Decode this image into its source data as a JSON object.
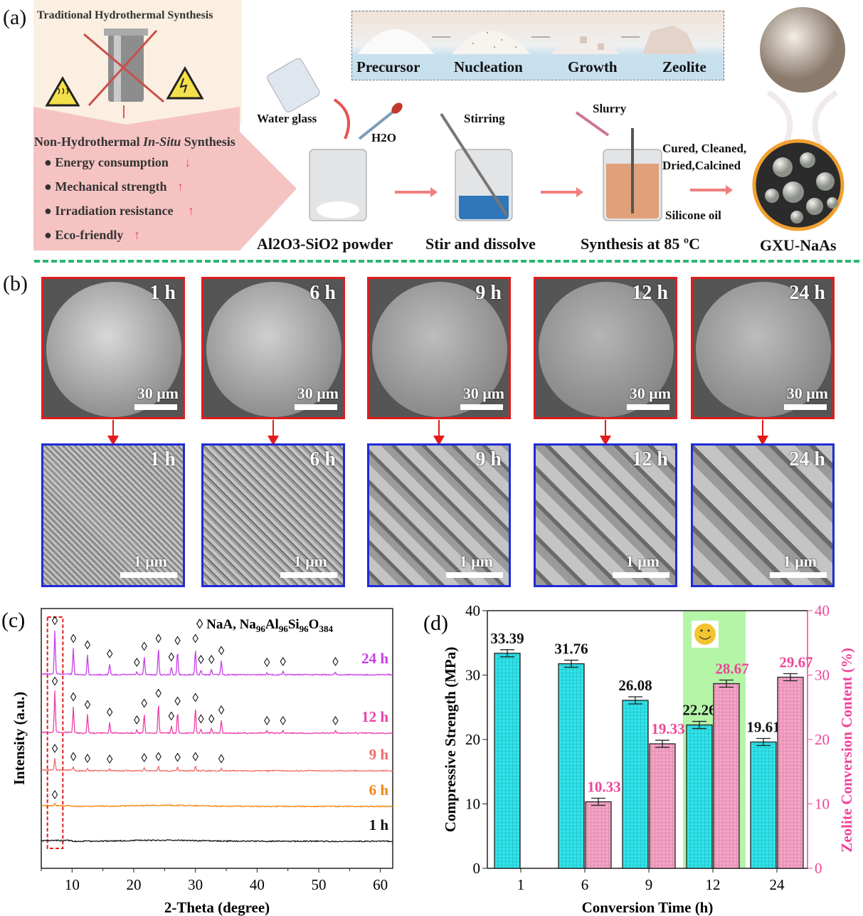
{
  "panel_a": {
    "label": "(a)",
    "traditional_title": "Traditional Hydrothermal Synthesis",
    "non_hydro_title_pre": "Non-Hydrothermal ",
    "non_hydro_title_em": "In-Situ",
    "non_hydro_title_post": " Synthesis",
    "benefits": [
      {
        "text": "Energy consumption",
        "arrow": "↓"
      },
      {
        "text": "Mechanical strength",
        "arrow": "↑"
      },
      {
        "text": "Irradiation resistance",
        "arrow": "↑"
      },
      {
        "text": "Eco-friendly",
        "arrow": "↑"
      }
    ],
    "stages": [
      "Precursor",
      "Nucleation",
      "Growth",
      "Zeolite"
    ],
    "water_glass": "Water glass",
    "h2o": "H2O",
    "stirring": "Stirring",
    "slurry": "Slurry",
    "cured": "Cured, Cleaned,",
    "dried": "Dried,Calcined",
    "silicone_oil": "Silicone oil",
    "steps": [
      "Al2O3-SiO2 powder",
      "Stir and dissolve",
      "Synthesis at 85 ºC",
      "GXU-NaAs"
    ],
    "colors": {
      "arrow": "#e8524f",
      "pink_panel": "#f6c3c3",
      "divider": "#2bb673"
    }
  },
  "panel_b": {
    "label": "(b)",
    "times": [
      "1 h",
      "6 h",
      "9 h",
      "12 h",
      "24 h"
    ],
    "scale_low": "30 μm",
    "scale_high": "1 μm",
    "colors": {
      "low_mag_border": "#e31b1b",
      "high_mag_border": "#1f2bd6"
    }
  },
  "chart_data": [
    {
      "panel": "(c)",
      "type": "line",
      "xlabel": "2-Theta (degree)",
      "ylabel": "Intensity (a.u.)",
      "xlim": [
        5,
        62
      ],
      "xticks": [
        10,
        20,
        30,
        40,
        50,
        60
      ],
      "legend": {
        "marker": "◊",
        "text": "NaA, Na",
        "formula": [
          [
            "96",
            "Al"
          ],
          [
            "96",
            "Si"
          ],
          [
            "96",
            "O"
          ],
          [
            "384",
            ""
          ]
        ]
      },
      "highlight_box_2theta": [
        6,
        8.5
      ],
      "series": [
        {
          "name": "24 h",
          "color": "#c93fe8",
          "peaks": [
            [
              7.2,
              1.0
            ],
            [
              10.2,
              0.6
            ],
            [
              12.5,
              0.45
            ],
            [
              16.1,
              0.25
            ],
            [
              20.5,
              0.06
            ],
            [
              21.7,
              0.42
            ],
            [
              24.0,
              0.6
            ],
            [
              26.1,
              0.18
            ],
            [
              27.1,
              0.55
            ],
            [
              30.0,
              0.6
            ],
            [
              30.9,
              0.12
            ],
            [
              32.6,
              0.12
            ],
            [
              34.2,
              0.32
            ],
            [
              41.6,
              0.06
            ],
            [
              44.2,
              0.07
            ],
            [
              52.7,
              0.07
            ]
          ],
          "markers": [
            7.2,
            10.2,
            12.5,
            16.1,
            20.5,
            21.7,
            24.0,
            26.1,
            27.1,
            30.0,
            30.9,
            32.6,
            34.2,
            41.6,
            44.2,
            52.7
          ]
        },
        {
          "name": "12 h",
          "color": "#ec3fa8",
          "peaks": [
            [
              7.2,
              0.95
            ],
            [
              10.2,
              0.6
            ],
            [
              12.5,
              0.42
            ],
            [
              16.1,
              0.25
            ],
            [
              20.5,
              0.07
            ],
            [
              21.7,
              0.45
            ],
            [
              24.0,
              0.68
            ],
            [
              26.1,
              0.16
            ],
            [
              27.1,
              0.5
            ],
            [
              30.0,
              0.58
            ],
            [
              30.9,
              0.1
            ],
            [
              32.6,
              0.1
            ],
            [
              34.2,
              0.3
            ],
            [
              41.6,
              0.06
            ],
            [
              44.2,
              0.06
            ],
            [
              52.7,
              0.06
            ]
          ],
          "markers": [
            7.2,
            10.2,
            12.5,
            16.1,
            20.5,
            21.7,
            24.0,
            26.1,
            27.1,
            30.0,
            30.9,
            32.6,
            34.2,
            41.6,
            44.2,
            52.7
          ]
        },
        {
          "name": "9 h",
          "color": "#f06a6a",
          "peaks": [
            [
              7.2,
              0.28
            ],
            [
              10.2,
              0.1
            ],
            [
              12.5,
              0.06
            ],
            [
              16.1,
              0.04
            ],
            [
              21.7,
              0.07
            ],
            [
              24.0,
              0.1
            ],
            [
              27.1,
              0.08
            ],
            [
              30.0,
              0.1
            ],
            [
              34.2,
              0.05
            ]
          ],
          "markers": [
            7.2,
            10.2,
            12.5,
            16.1,
            21.7,
            24.0,
            27.1,
            30.0,
            34.2
          ]
        },
        {
          "name": "6 h",
          "color": "#f5840c",
          "peaks": [
            [
              7.2,
              0.04
            ]
          ],
          "markers": [
            7.2
          ]
        },
        {
          "name": "1 h",
          "color": "#111111",
          "peaks": [],
          "markers": []
        }
      ]
    },
    {
      "panel": "(d)",
      "type": "bar",
      "xlabel": "Conversion Time (h)",
      "ylabel": "Compressive Strength (MPa)",
      "y2label": "Zeolite Conversion Content (%)",
      "categories": [
        "1",
        "6",
        "9",
        "12",
        "24"
      ],
      "ylim": [
        0,
        40
      ],
      "y2lim": [
        0,
        40
      ],
      "yticks": [
        0,
        10,
        20,
        30,
        40
      ],
      "highlight_category": "12",
      "highlight_icon": "smiley-face",
      "series": [
        {
          "axis": "left",
          "color": "#2fe3ea",
          "label_color": "#111111",
          "values": [
            33.39,
            31.76,
            26.08,
            22.26,
            19.61
          ],
          "labels": [
            "33.39",
            "31.76",
            "26.08",
            "22.26",
            "19.61"
          ]
        },
        {
          "axis": "right",
          "color": "#f4a3c6",
          "label_color": "#f0449a",
          "values": [
            null,
            10.33,
            19.33,
            28.67,
            29.67
          ],
          "labels": [
            "",
            "10.33",
            "19.33",
            "28.67",
            "29.67"
          ]
        }
      ],
      "colors": {
        "highlight": "#b4f5a8",
        "right_axis": "#f0449a"
      }
    }
  ]
}
